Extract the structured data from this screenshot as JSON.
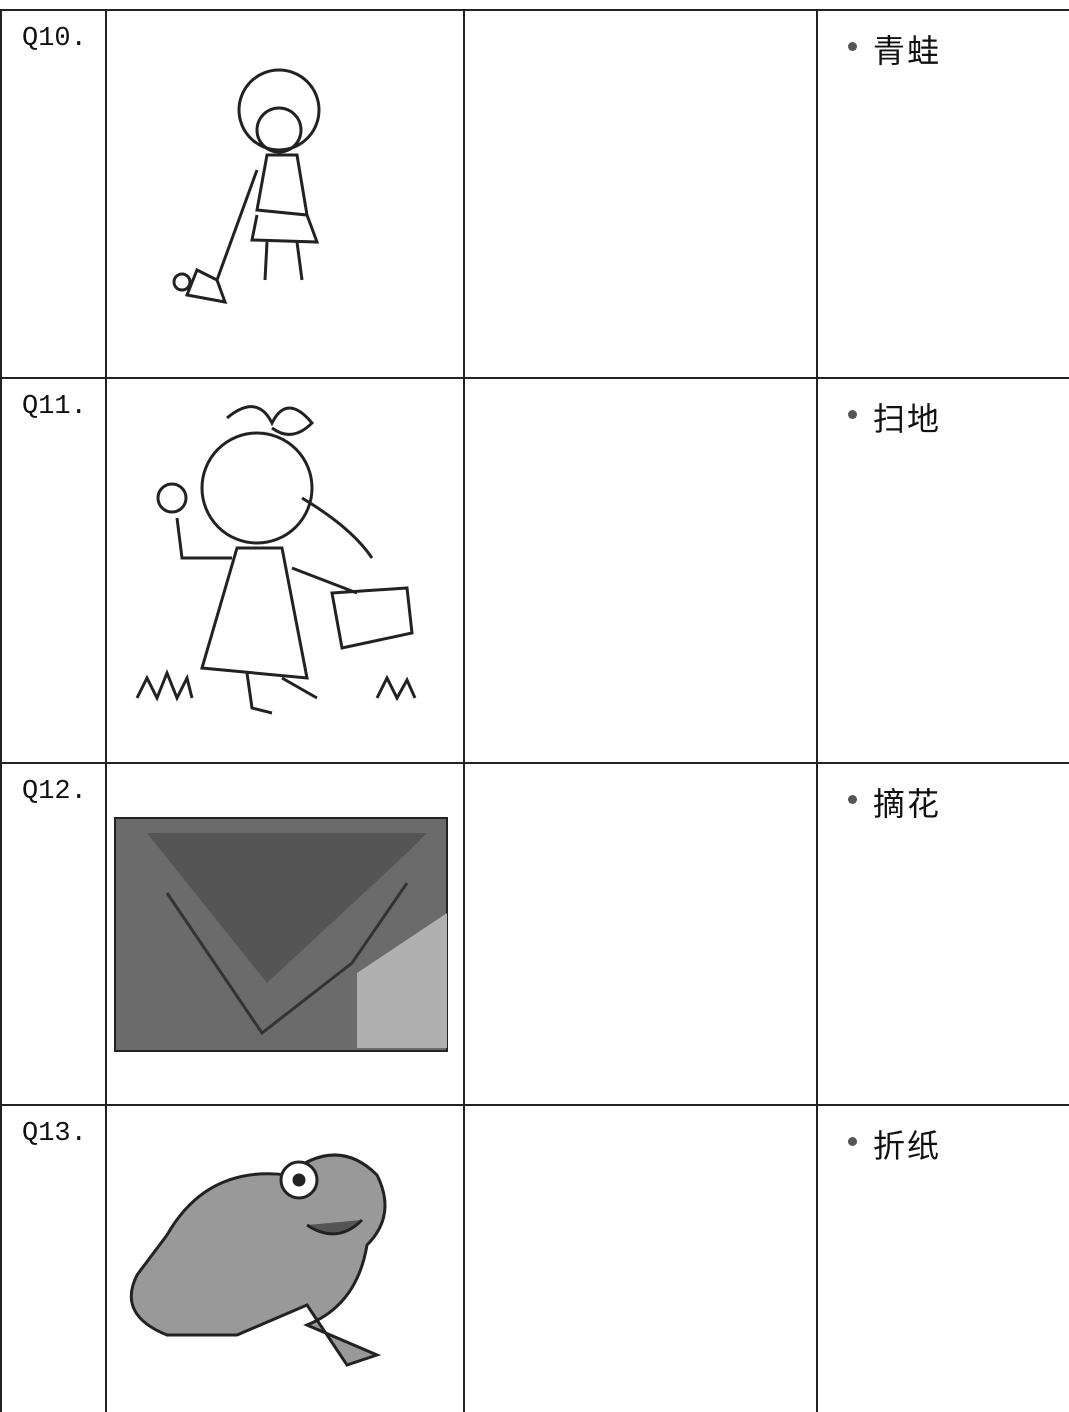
{
  "rows": [
    {
      "label": "Q10.",
      "word": "青蛙"
    },
    {
      "label": "Q11.",
      "word": "扫地"
    },
    {
      "label": "Q12.",
      "word": "摘花"
    },
    {
      "label": "Q13.",
      "word": "折纸"
    }
  ]
}
